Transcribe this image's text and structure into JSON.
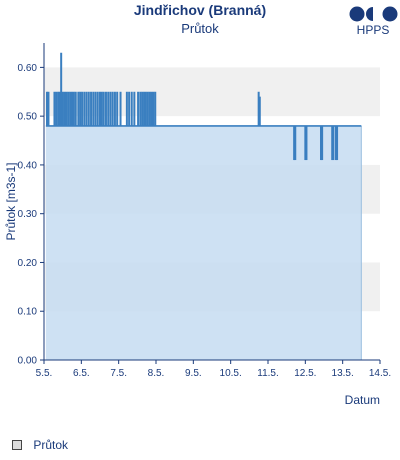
{
  "header": {
    "title": "Jindřichov (Branná)",
    "subtitle": "Průtok"
  },
  "logo": {
    "text": "HPPS",
    "color": "#1a3a7a"
  },
  "legend": {
    "items": [
      {
        "label": "Průtok"
      }
    ]
  },
  "chart_data": {
    "type": "area",
    "title": "Jindřichov (Branná)",
    "subtitle": "Průtok",
    "xlabel": "Datum",
    "ylabel": "Průtok [m3s-1]",
    "xlim": [
      5.0,
      14.0
    ],
    "ylim": [
      0.0,
      0.65
    ],
    "x_ticks": [
      {
        "v": 5.0,
        "label": "5.5."
      },
      {
        "v": 6.0,
        "label": "6.5."
      },
      {
        "v": 7.0,
        "label": "7.5."
      },
      {
        "v": 8.0,
        "label": "8.5."
      },
      {
        "v": 9.0,
        "label": "9.5."
      },
      {
        "v": 10.0,
        "label": "10.5."
      },
      {
        "v": 11.0,
        "label": "11.5."
      },
      {
        "v": 12.0,
        "label": "12.5."
      },
      {
        "v": 13.0,
        "label": "13.5."
      },
      {
        "v": 14.0,
        "label": "14.5."
      }
    ],
    "y_ticks": [
      {
        "v": 0.0,
        "label": "0.00"
      },
      {
        "v": 0.1,
        "label": "0.10"
      },
      {
        "v": 0.2,
        "label": "0.20"
      },
      {
        "v": 0.3,
        "label": "0.30"
      },
      {
        "v": 0.4,
        "label": "0.40"
      },
      {
        "v": 0.5,
        "label": "0.50"
      },
      {
        "v": 0.6,
        "label": "0.60"
      }
    ],
    "grid": "horizontal bands",
    "legend_position": "bottom-left",
    "colors": {
      "fill": "#c6dcf1",
      "line": "#3a7fc0",
      "axis": "#1a3a7a",
      "band": "#f0f0f0"
    },
    "series": [
      {
        "name": "Průtok",
        "baseline": 0.48,
        "x": [
          5.05,
          14.0
        ],
        "y": [
          0.48,
          0.48
        ],
        "spikes": [
          {
            "x": 5.08,
            "y": 0.55
          },
          {
            "x": 5.12,
            "y": 0.55
          },
          {
            "x": 5.28,
            "y": 0.55
          },
          {
            "x": 5.33,
            "y": 0.55
          },
          {
            "x": 5.38,
            "y": 0.55
          },
          {
            "x": 5.42,
            "y": 0.55
          },
          {
            "x": 5.46,
            "y": 0.63
          },
          {
            "x": 5.5,
            "y": 0.55
          },
          {
            "x": 5.55,
            "y": 0.55
          },
          {
            "x": 5.6,
            "y": 0.55
          },
          {
            "x": 5.65,
            "y": 0.55
          },
          {
            "x": 5.7,
            "y": 0.55
          },
          {
            "x": 5.75,
            "y": 0.55
          },
          {
            "x": 5.8,
            "y": 0.55
          },
          {
            "x": 5.85,
            "y": 0.55
          },
          {
            "x": 5.92,
            "y": 0.55
          },
          {
            "x": 5.97,
            "y": 0.55
          },
          {
            "x": 6.02,
            "y": 0.55
          },
          {
            "x": 6.08,
            "y": 0.55
          },
          {
            "x": 6.14,
            "y": 0.55
          },
          {
            "x": 6.2,
            "y": 0.55
          },
          {
            "x": 6.26,
            "y": 0.55
          },
          {
            "x": 6.32,
            "y": 0.55
          },
          {
            "x": 6.38,
            "y": 0.55
          },
          {
            "x": 6.44,
            "y": 0.55
          },
          {
            "x": 6.5,
            "y": 0.55
          },
          {
            "x": 6.55,
            "y": 0.55
          },
          {
            "x": 6.6,
            "y": 0.55
          },
          {
            "x": 6.66,
            "y": 0.55
          },
          {
            "x": 6.72,
            "y": 0.55
          },
          {
            "x": 6.78,
            "y": 0.55
          },
          {
            "x": 6.84,
            "y": 0.55
          },
          {
            "x": 6.9,
            "y": 0.55
          },
          {
            "x": 6.96,
            "y": 0.55
          },
          {
            "x": 7.05,
            "y": 0.55
          },
          {
            "x": 7.22,
            "y": 0.55
          },
          {
            "x": 7.28,
            "y": 0.55
          },
          {
            "x": 7.35,
            "y": 0.55
          },
          {
            "x": 7.42,
            "y": 0.55
          },
          {
            "x": 7.52,
            "y": 0.55
          },
          {
            "x": 7.58,
            "y": 0.55
          },
          {
            "x": 7.63,
            "y": 0.55
          },
          {
            "x": 7.68,
            "y": 0.55
          },
          {
            "x": 7.73,
            "y": 0.55
          },
          {
            "x": 7.78,
            "y": 0.55
          },
          {
            "x": 7.83,
            "y": 0.55
          },
          {
            "x": 7.88,
            "y": 0.55
          },
          {
            "x": 7.93,
            "y": 0.55
          },
          {
            "x": 7.98,
            "y": 0.55
          },
          {
            "x": 10.75,
            "y": 0.55
          },
          {
            "x": 10.78,
            "y": 0.54
          },
          {
            "x": 11.7,
            "y": 0.41
          },
          {
            "x": 11.73,
            "y": 0.41
          },
          {
            "x": 12.0,
            "y": 0.41
          },
          {
            "x": 12.03,
            "y": 0.41
          },
          {
            "x": 12.42,
            "y": 0.41
          },
          {
            "x": 12.45,
            "y": 0.41
          },
          {
            "x": 12.72,
            "y": 0.41
          },
          {
            "x": 12.75,
            "y": 0.41
          },
          {
            "x": 12.82,
            "y": 0.41
          },
          {
            "x": 12.85,
            "y": 0.41
          }
        ],
        "end_x": 13.5
      }
    ]
  }
}
